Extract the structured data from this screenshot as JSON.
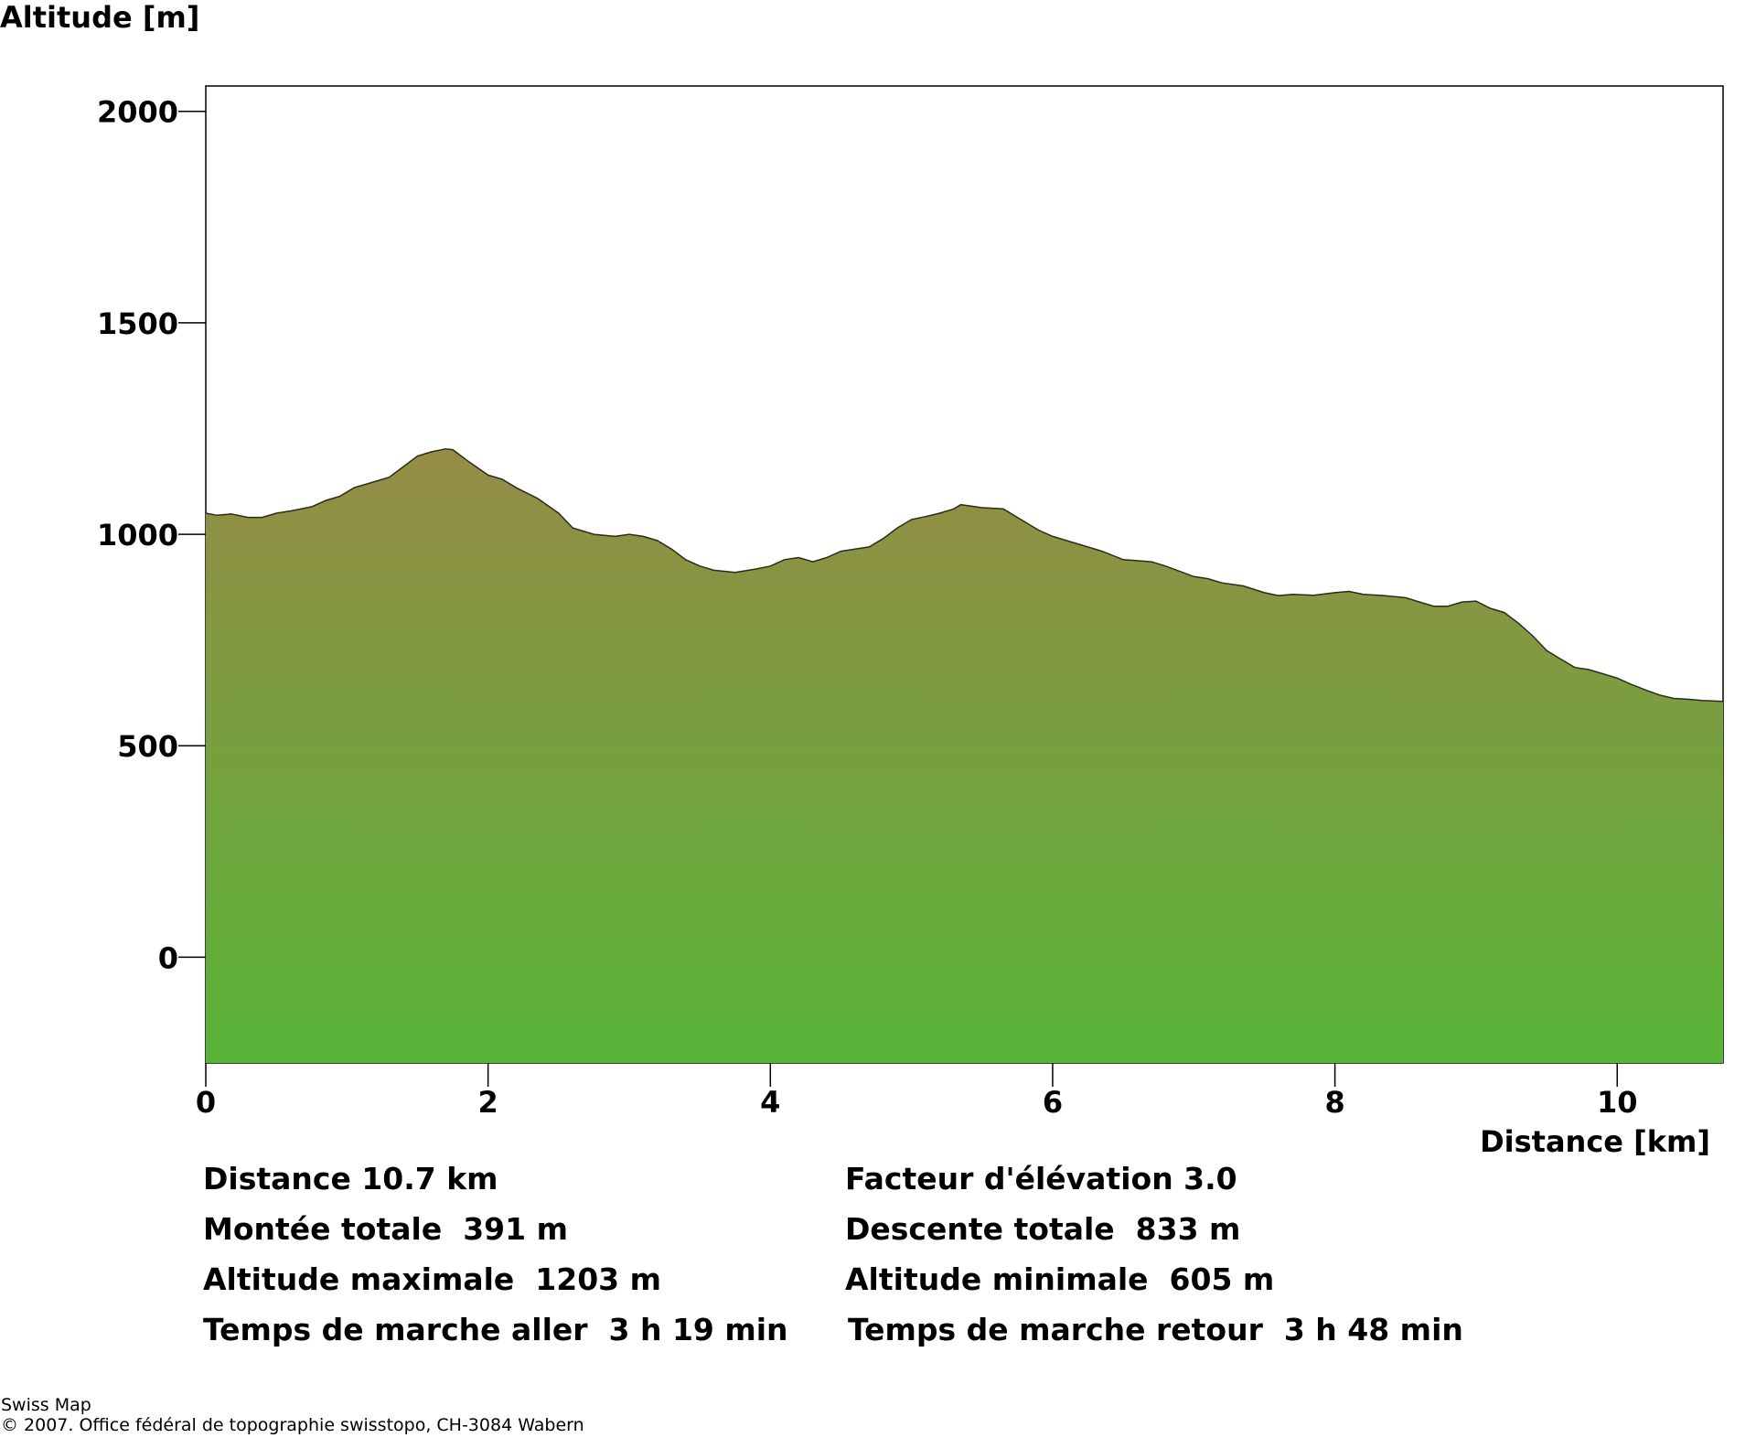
{
  "chart_data": {
    "type": "area",
    "ylabel": "Altitude [m]",
    "xlabel": "Distance [km]",
    "xlim": [
      0,
      10.75
    ],
    "ylim": [
      -250,
      2060
    ],
    "yticks": [
      0,
      500,
      1000,
      1500,
      2000
    ],
    "xticks": [
      0,
      2,
      4,
      6,
      8,
      10
    ],
    "grid": false,
    "fill_colors": {
      "top": "#958c46",
      "bottom": "#58b437"
    },
    "series": [
      {
        "x": [
          0,
          0.08,
          0.18,
          0.3,
          0.4,
          0.5,
          0.6,
          0.75,
          0.85,
          0.95,
          1.05,
          1.15,
          1.3,
          1.4,
          1.5,
          1.6,
          1.7,
          1.75,
          1.85,
          2.0,
          2.1,
          2.2,
          2.35,
          2.5,
          2.6,
          2.65,
          2.75,
          2.9,
          3.0,
          3.1,
          3.2,
          3.3,
          3.4,
          3.5,
          3.6,
          3.75,
          3.9,
          4.0,
          4.1,
          4.2,
          4.3,
          4.4,
          4.5,
          4.6,
          4.7,
          4.8,
          4.9,
          5.0,
          5.1,
          5.2,
          5.3,
          5.35,
          5.5,
          5.65,
          5.75,
          5.9,
          6.0,
          6.2,
          6.35,
          6.5,
          6.7,
          6.8,
          7.0,
          7.1,
          7.2,
          7.35,
          7.5,
          7.6,
          7.7,
          7.85,
          8.0,
          8.1,
          8.2,
          8.35,
          8.5,
          8.6,
          8.7,
          8.8,
          8.9,
          9.0,
          9.1,
          9.2,
          9.3,
          9.4,
          9.5,
          9.6,
          9.7,
          9.8,
          9.9,
          10.0,
          10.1,
          10.2,
          10.3,
          10.4,
          10.5,
          10.6,
          10.75
        ],
        "y": [
          1050,
          1045,
          1048,
          1040,
          1040,
          1050,
          1055,
          1065,
          1080,
          1090,
          1110,
          1120,
          1135,
          1160,
          1185,
          1195,
          1202,
          1200,
          1175,
          1140,
          1130,
          1110,
          1085,
          1050,
          1015,
          1010,
          1000,
          995,
          1000,
          995,
          985,
          965,
          940,
          925,
          915,
          910,
          918,
          925,
          940,
          945,
          935,
          945,
          960,
          965,
          970,
          990,
          1015,
          1035,
          1042,
          1050,
          1060,
          1070,
          1063,
          1060,
          1040,
          1010,
          995,
          975,
          960,
          940,
          935,
          925,
          900,
          895,
          885,
          878,
          862,
          855,
          858,
          856,
          862,
          865,
          858,
          855,
          850,
          840,
          830,
          830,
          840,
          842,
          825,
          815,
          790,
          760,
          725,
          705,
          685,
          680,
          670,
          660,
          645,
          632,
          620,
          612,
          610,
          607,
          605
        ]
      }
    ]
  },
  "stats": {
    "distance": "Distance 10.7 km",
    "elevation_factor": "Facteur d'élévation 3.0",
    "total_ascent": "Montée totale  391 m",
    "total_descent": "Descente totale  833 m",
    "max_altitude": "Altitude maximale  1203 m",
    "min_altitude": "Altitude minimale  605 m",
    "walk_time_out": "Temps de marche aller  3 h 19 min",
    "walk_time_back": "Temps de marche retour  3 h 48 min"
  },
  "footer": {
    "source": "Swiss Map",
    "copyright": "© 2007. Office fédéral de topographie swisstopo, CH-3084 Wabern"
  }
}
